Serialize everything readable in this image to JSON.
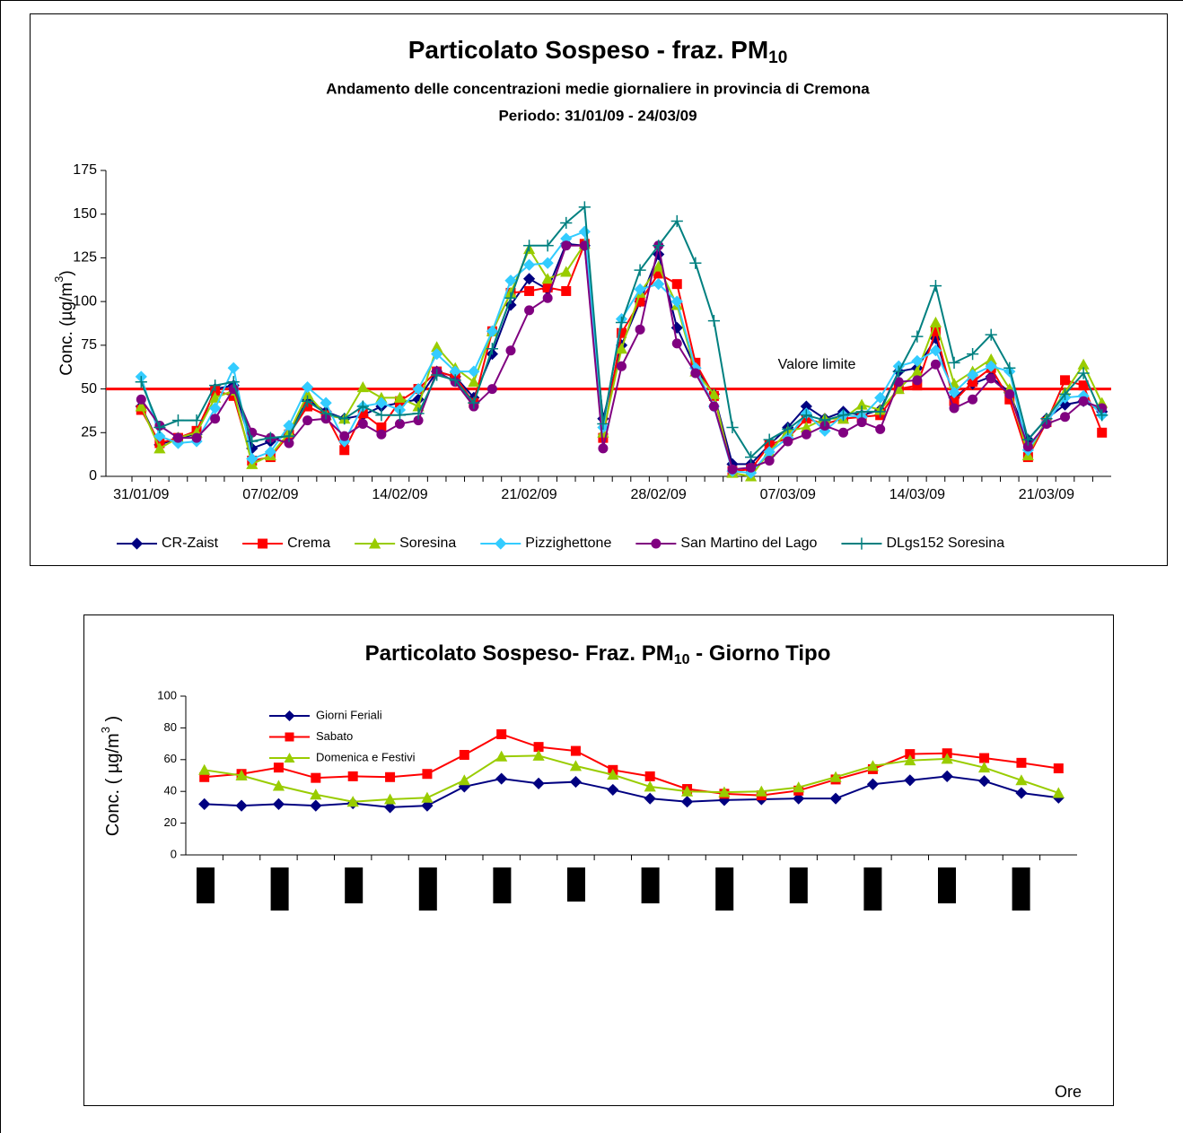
{
  "chart_data": [
    {
      "type": "line",
      "title": "Particolato Sospeso - fraz. PM",
      "title_sub": "10",
      "subtitles": [
        "Andamento delle concentrazioni medie giornaliere in provincia di  Cremona",
        "Periodo: 31/01/09 - 24/03/09"
      ],
      "ylabel": {
        "text": "Conc. (µg/m",
        "sup": "3",
        "end": ")"
      },
      "categories": [
        "31/01/09",
        null,
        null,
        null,
        null,
        null,
        null,
        "07/02/09",
        null,
        null,
        null,
        null,
        null,
        null,
        "14/02/09",
        null,
        null,
        null,
        null,
        null,
        null,
        "21/02/09",
        null,
        null,
        null,
        null,
        null,
        null,
        "28/02/09",
        null,
        null,
        null,
        null,
        null,
        null,
        "07/03/09",
        null,
        null,
        null,
        null,
        null,
        null,
        "14/03/09",
        null,
        null,
        null,
        null,
        null,
        null,
        "21/03/09",
        null,
        null,
        null
      ],
      "ylim": [
        0,
        175
      ],
      "yticks": [
        0,
        25,
        50,
        75,
        100,
        125,
        150,
        175
      ],
      "legend": "bottom",
      "reference_line": {
        "value": 50,
        "label": "Valore limite",
        "color": "#ff0000"
      },
      "series": [
        {
          "name": "CR-Zaist",
          "color": "#000080",
          "marker": "diamond",
          "values": [
            40,
            18,
            22,
            24,
            50,
            52,
            16,
            20,
            24,
            44,
            37,
            33,
            35,
            40,
            42,
            44,
            60,
            57,
            45,
            70,
            98,
            113,
            107,
            133,
            132,
            33,
            75,
            100,
            127,
            85,
            62,
            47,
            7,
            7,
            18,
            28,
            40,
            33,
            37,
            35,
            38,
            60,
            62,
            79,
            45,
            53,
            57,
            48,
            21,
            33,
            41,
            43,
            37
          ]
        },
        {
          "name": "Crema",
          "color": "#ff0000",
          "marker": "square",
          "values": [
            38,
            19,
            22,
            26,
            49,
            46,
            9,
            11,
            24,
            40,
            35,
            15,
            36,
            28,
            43,
            50,
            60,
            57,
            42,
            83,
            105,
            106,
            108,
            106,
            133,
            22,
            82,
            100,
            116,
            110,
            65,
            46,
            3,
            4,
            18,
            22,
            33,
            30,
            33,
            34,
            35,
            50,
            52,
            83,
            43,
            54,
            62,
            44,
            11,
            31,
            55,
            52,
            25
          ]
        },
        {
          "name": "Soresina",
          "color": "#99cc00",
          "marker": "triangle",
          "values": [
            40,
            16,
            22,
            25,
            45,
            49,
            7,
            12,
            25,
            47,
            35,
            33,
            51,
            45,
            45,
            40,
            74,
            62,
            54,
            83,
            105,
            130,
            113,
            117,
            133,
            25,
            73,
            105,
            120,
            98,
            60,
            47,
            2,
            0,
            14,
            26,
            28,
            33,
            33,
            41,
            38,
            50,
            60,
            88,
            53,
            60,
            67,
            50,
            12,
            33,
            48,
            64,
            42
          ]
        },
        {
          "name": "Pizzighettone",
          "color": "#33ccff",
          "marker": "diamond",
          "values": [
            57,
            23,
            19,
            20,
            39,
            62,
            10,
            14,
            29,
            51,
            42,
            20,
            40,
            42,
            38,
            50,
            70,
            60,
            60,
            83,
            112,
            121,
            122,
            136,
            140,
            28,
            90,
            107,
            110,
            100,
            62,
            40,
            3,
            2,
            14,
            22,
            36,
            26,
            35,
            34,
            45,
            63,
            66,
            72,
            48,
            58,
            63,
            60,
            15,
            31,
            45,
            46,
            35
          ]
        },
        {
          "name": "San Martino del Lago",
          "color": "#800080",
          "marker": "circle",
          "values": [
            44,
            29,
            22,
            22,
            33,
            50,
            25,
            22,
            19,
            32,
            33,
            23,
            30,
            24,
            30,
            32,
            60,
            54,
            40,
            50,
            72,
            95,
            102,
            132,
            132,
            16,
            63,
            84,
            132,
            76,
            59,
            40,
            4,
            5,
            9,
            20,
            24,
            29,
            25,
            31,
            27,
            54,
            55,
            64,
            39,
            44,
            56,
            47,
            17,
            30,
            34,
            43,
            39
          ]
        },
        {
          "name": "DLgs152 Soresina",
          "color": "#008080",
          "marker": "plus",
          "values": [
            54,
            28,
            32,
            32,
            52,
            54,
            20,
            22,
            23,
            43,
            36,
            33,
            40,
            35,
            35,
            36,
            58,
            55,
            42,
            73,
            102,
            132,
            132,
            145,
            154,
            30,
            88,
            118,
            132,
            146,
            122,
            89,
            28,
            11,
            21,
            27,
            35,
            32,
            35,
            37,
            37,
            60,
            80,
            109,
            65,
            70,
            81,
            62,
            21,
            33,
            47,
            59,
            35
          ]
        }
      ]
    },
    {
      "type": "line",
      "title": "Particolato Sospeso- Fraz. PM",
      "title_sub": "10",
      "title_end": " - Giorno Tipo",
      "ylabel": {
        "text": "Conc. ( µg/m",
        "sup": "3",
        "end": " )"
      },
      "xlabel": "Ore",
      "categories": [
        null,
        null,
        null,
        null,
        null,
        null,
        null,
        null,
        null,
        null,
        null,
        null,
        null,
        null,
        null,
        null,
        null,
        null,
        null,
        null,
        null,
        null,
        null,
        null
      ],
      "ylim": [
        0,
        100
      ],
      "yticks": [
        0,
        20,
        40,
        60,
        80,
        100
      ],
      "legend": "upper left",
      "series": [
        {
          "name": "Giorni Feriali",
          "color": "#000080",
          "marker": "diamond",
          "values": [
            32,
            31,
            32,
            31,
            32.5,
            30,
            31,
            43,
            48,
            45,
            46,
            41,
            35.5,
            33.5,
            34.5,
            35,
            35.5,
            35.5,
            44.5,
            47,
            49.5,
            46.5,
            39,
            36
          ]
        },
        {
          "name": "Sabato",
          "color": "#ff0000",
          "marker": "square",
          "values": [
            49,
            51,
            55,
            48.5,
            49.5,
            49,
            51,
            63,
            76,
            68,
            65.5,
            53.5,
            49.5,
            41.5,
            38.5,
            37.5,
            40.5,
            47.5,
            54,
            63.5,
            64,
            61,
            58,
            54.5
          ]
        },
        {
          "name": "Domenica e Festivi",
          "color": "#99cc00",
          "marker": "triangle",
          "values": [
            53.5,
            50,
            43.5,
            38,
            33.5,
            35,
            36,
            47,
            62,
            62.5,
            56,
            50.5,
            43,
            40,
            39.5,
            40,
            42.5,
            49,
            56,
            59.5,
            60.5,
            55,
            47,
            39
          ]
        }
      ]
    }
  ]
}
